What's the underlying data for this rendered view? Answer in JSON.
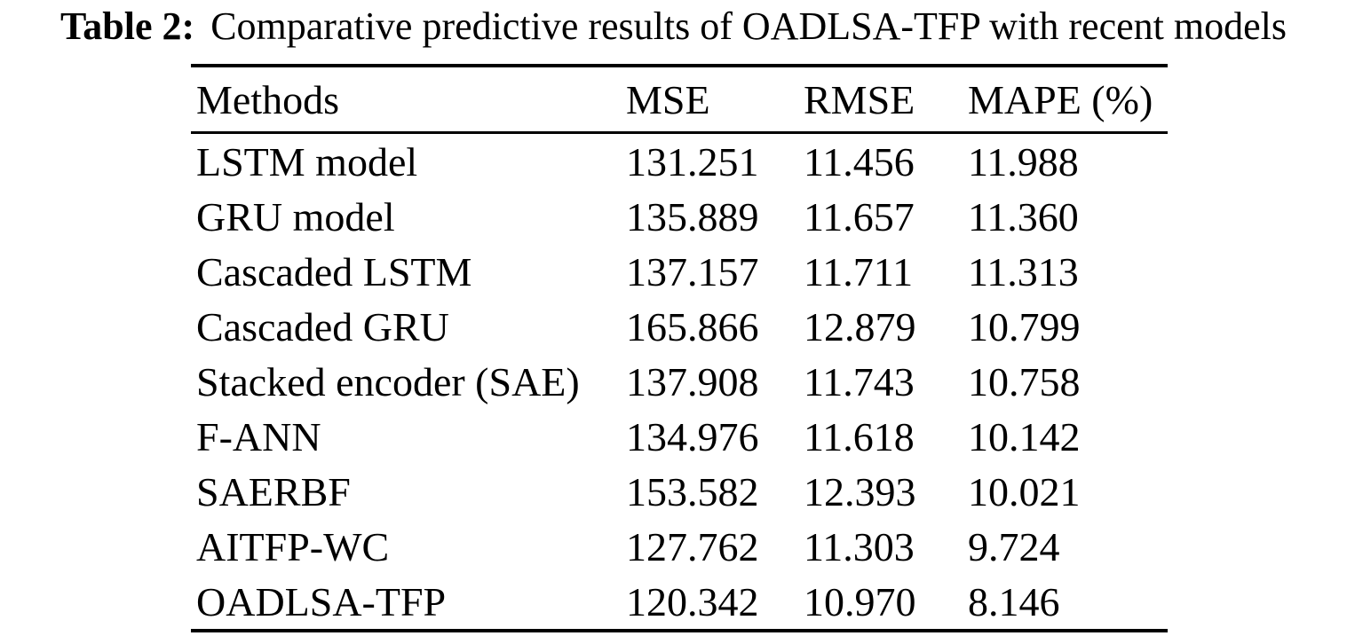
{
  "caption": {
    "label": "Table 2:",
    "text": "Comparative predictive results of OADLSA-TFP with recent models"
  },
  "table": {
    "columns": [
      "Methods",
      "MSE",
      "RMSE",
      "MAPE (%)"
    ],
    "rows": [
      {
        "method": "LSTM model",
        "mse": "131.251",
        "rmse": "11.456",
        "mape": "11.988"
      },
      {
        "method": "GRU model",
        "mse": "135.889",
        "rmse": "11.657",
        "mape": "11.360"
      },
      {
        "method": "Cascaded LSTM",
        "mse": "137.157",
        "rmse": "11.711",
        "mape": "11.313"
      },
      {
        "method": "Cascaded GRU",
        "mse": "165.866",
        "rmse": "12.879",
        "mape": "10.799"
      },
      {
        "method": "Stacked encoder (SAE)",
        "mse": "137.908",
        "rmse": "11.743",
        "mape": "10.758"
      },
      {
        "method": "F-ANN",
        "mse": "134.976",
        "rmse": "11.618",
        "mape": "10.142"
      },
      {
        "method": "SAERBF",
        "mse": "153.582",
        "rmse": "12.393",
        "mape": "10.021"
      },
      {
        "method": "AITFP-WC",
        "mse": "127.762",
        "rmse": "11.303",
        "mape": "9.724"
      },
      {
        "method": "OADLSA-TFP",
        "mse": "120.342",
        "rmse": "10.970",
        "mape": "8.146"
      }
    ]
  },
  "colors": {
    "text": "#000000",
    "background": "#ffffff",
    "rule": "#000000"
  }
}
